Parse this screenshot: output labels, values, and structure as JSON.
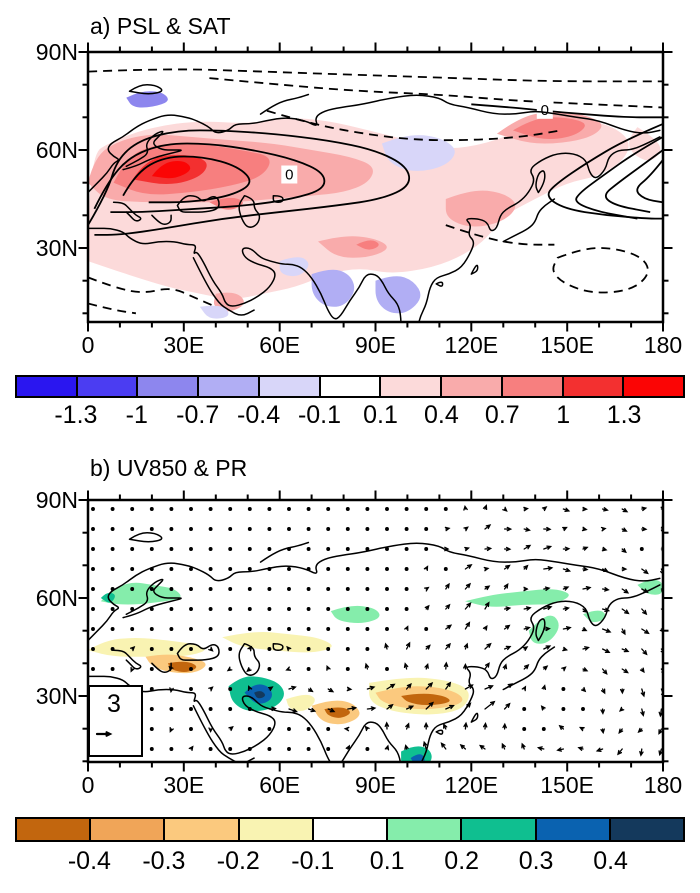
{
  "figure": {
    "panels": [
      {
        "id": "a",
        "title": "a) PSL & SAT",
        "y_ticks": [
          "90N",
          "60N",
          "30N"
        ],
        "x_ticks": [
          "0",
          "30E",
          "60E",
          "90E",
          "120E",
          "150E",
          "180"
        ],
        "contour_label": "0",
        "colorbar": {
          "labels": [
            "-1.3",
            "-1",
            "-0.7",
            "-0.4",
            "-0.1",
            "0.1",
            "0.4",
            "0.7",
            "1",
            "1.3"
          ],
          "colors": [
            "#2a16f0",
            "#4b3df2",
            "#8d86ee",
            "#b1aef4",
            "#d8d6f9",
            "#ffffff",
            "#fcdada",
            "#f9abab",
            "#f77f7f",
            "#f33030",
            "#fb0505"
          ]
        }
      },
      {
        "id": "b",
        "title": "b) UV850 & PR",
        "y_ticks": [
          "90N",
          "60N",
          "30N"
        ],
        "x_ticks": [
          "0",
          "30E",
          "60E",
          "90E",
          "120E",
          "150E",
          "180"
        ],
        "reference_vector_label": "3",
        "colorbar": {
          "labels": [
            "-0.4",
            "-0.3",
            "-0.2",
            "-0.1",
            "0.1",
            "0.2",
            "0.3",
            "0.4"
          ],
          "colors": [
            "#c2660e",
            "#f0a558",
            "#fbc97e",
            "#f9f3b2",
            "#ffffff",
            "#85edab",
            "#0fbf90",
            "#0a62b0",
            "#14395c"
          ]
        }
      }
    ]
  },
  "chart_data": [
    {
      "type": "heatmap",
      "subtype": "filled-contour-map",
      "panel": "a",
      "title": "a) PSL & SAT",
      "shading_variable": "SAT anomaly",
      "contour_variable": "PSL anomaly",
      "x": {
        "label": "longitude",
        "range": [
          0,
          180
        ],
        "ticks": [
          "0",
          "30E",
          "60E",
          "90E",
          "120E",
          "150E",
          "180"
        ],
        "minor_tick_step_deg": 10
      },
      "y": {
        "label": "latitude",
        "range": [
          5,
          90
        ],
        "ticks": [
          "90N",
          "60N",
          "30N"
        ]
      },
      "legend_position": "bottom",
      "grid": false,
      "colorbar_levels": [
        -1.3,
        -1,
        -0.7,
        -0.4,
        -0.1,
        0.1,
        0.4,
        0.7,
        1,
        1.3
      ],
      "colorbar_colors": [
        "#2a16f0",
        "#4b3df2",
        "#8d86ee",
        "#b1aef4",
        "#d8d6f9",
        "#ffffff",
        "#fcdada",
        "#f9abab",
        "#f77f7f",
        "#f33030",
        "#fb0505"
      ],
      "contour_zero_label": "0",
      "features": [
        "warm SAT anomaly maximum about +1 to +1.3 over eastern Europe / western Russia (20-40E, 50-58N)",
        "broad +0.1 to +0.7 warm shading across mid-latitude Eurasia from 0 to 150E",
        "secondary warm patch +0.4 to +0.7 over northeastern Siberia (130-155E, 62-72N)",
        "weak cool anomalies -0.1 to -0.4 over central Siberia (95-115E, 52-65N), the Barents sector, India and Southeast Asia",
        "closed solid (positive) PSL contours centered over Europe / western Russia",
        "dashed (negative) PSL contours along the Arctic rim, over subtropical Africa and the northwest subtropical Pacific",
        "tight solid contour bundle over the far northwest Pacific near Kamchatka"
      ]
    },
    {
      "type": "heatmap",
      "subtype": "vector-map",
      "panel": "b",
      "title": "b) UV850 & PR",
      "shading_variable": "PR (precipitation) anomaly",
      "vector_variable": "UV850 wind anomaly",
      "x": {
        "label": "longitude",
        "range": [
          0,
          180
        ],
        "ticks": [
          "0",
          "30E",
          "60E",
          "90E",
          "120E",
          "150E",
          "180"
        ],
        "minor_tick_step_deg": 10
      },
      "y": {
        "label": "latitude",
        "range": [
          7,
          90
        ],
        "ticks": [
          "90N",
          "60N",
          "30N"
        ]
      },
      "legend_position": "bottom",
      "grid": false,
      "reference_vector": 3,
      "colorbar_levels": [
        -0.4,
        -0.3,
        -0.2,
        -0.1,
        0.1,
        0.2,
        0.3,
        0.4
      ],
      "colorbar_colors": [
        "#c2660e",
        "#f0a558",
        "#fbc97e",
        "#f9f3b2",
        "#ffffff",
        "#85edab",
        "#0fbf90",
        "#0a62b0",
        "#14395c"
      ],
      "features": [
        "dry anomalies -0.2 to -0.4 over Turkey / eastern Mediterranean, northern India and a band across central-southern China (95-118E, 25-33N)",
        "pale dry band -0.1 over southern Europe and central Asia",
        "wet anomalies +0.1 to +0.2 over Scandinavia, central Siberia, the Sea of Okhotsk coast, Sakhalid/Hokkaido",
        "strong wet center +0.3 to +0.4 over Iran / Persian Gulf region and over Indochina",
        "weak scattered 850-hPa wind anomaly vectors over most of the continent",
        "stronger vectors with an anticyclonic-looking swirl over the subtropical northwest Pacific and eastward flow near 28N from central Asia to China",
        "reference vector of 3 in a box at the lower left"
      ]
    }
  ]
}
